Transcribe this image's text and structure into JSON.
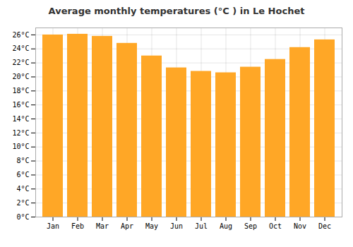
{
  "chart_data": {
    "type": "bar",
    "title": "Average monthly temperatures (°C ) in Le Hochet",
    "categories": [
      "Jan",
      "Feb",
      "Mar",
      "Apr",
      "May",
      "Jun",
      "Jul",
      "Aug",
      "Sep",
      "Oct",
      "Nov",
      "Dec"
    ],
    "values": [
      26.0,
      26.1,
      25.8,
      24.8,
      23.0,
      21.3,
      20.8,
      20.6,
      21.4,
      22.5,
      24.2,
      25.3
    ],
    "color": "#FFA726",
    "ylim": [
      0,
      27
    ],
    "yticks": [
      {
        "value": 0,
        "label": "0°C"
      },
      {
        "value": 2,
        "label": "2°C"
      },
      {
        "value": 4,
        "label": "4°C"
      },
      {
        "value": 6,
        "label": "6°C"
      },
      {
        "value": 8,
        "label": "8°C"
      },
      {
        "value": 10,
        "label": "10°C"
      },
      {
        "value": 12,
        "label": "12°C"
      },
      {
        "value": 14,
        "label": "14°C"
      },
      {
        "value": 16,
        "label": "16°C"
      },
      {
        "value": 18,
        "label": "18°C"
      },
      {
        "value": 20,
        "label": "20°C"
      },
      {
        "value": 22,
        "label": "22°C"
      },
      {
        "value": 24,
        "label": "24°C"
      },
      {
        "value": 26,
        "label": "26°C"
      }
    ],
    "grid": true
  }
}
